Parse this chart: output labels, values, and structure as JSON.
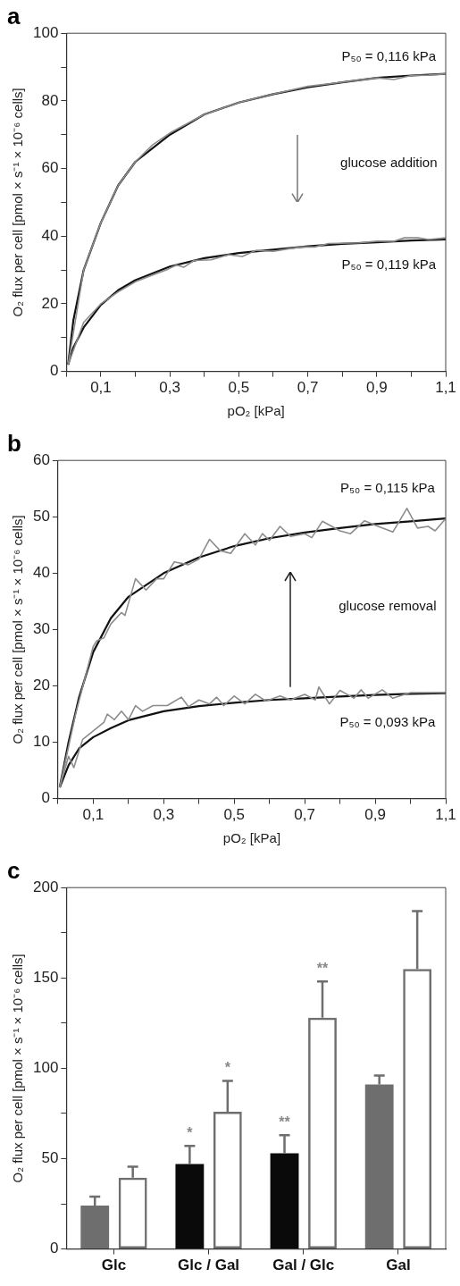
{
  "chart_data": [
    {
      "type": "line",
      "title": "a",
      "xlabel": "pO₂ [kPa]",
      "ylabel": "O₂ flux per cell [pmol × s⁻¹ × 10⁻⁶ cells]",
      "xlim": [
        0,
        1.1
      ],
      "ylim": [
        0,
        100
      ],
      "xticks": [
        {
          "value": 0,
          "label": null
        },
        {
          "value": 0.1,
          "label": "0,1"
        },
        {
          "value": 0.2,
          "label": null
        },
        {
          "value": 0.3,
          "label": "0,3"
        },
        {
          "value": 0.4,
          "label": null
        },
        {
          "value": 0.5,
          "label": "0,5"
        },
        {
          "value": 0.6,
          "label": null
        },
        {
          "value": 0.7,
          "label": "0,7"
        },
        {
          "value": 0.8,
          "label": null
        },
        {
          "value": 0.9,
          "label": "0,9"
        },
        {
          "value": 1.0,
          "label": null
        },
        {
          "value": 1.1,
          "label": "1,1"
        }
      ],
      "yticks": [
        0,
        {
          "value": 10,
          "label": null
        },
        20,
        {
          "value": 30,
          "label": null
        },
        40,
        {
          "value": 50,
          "label": null
        },
        60,
        {
          "value": 70,
          "label": null
        },
        80,
        {
          "value": 90,
          "label": null
        },
        100
      ],
      "grid": false,
      "legend": false,
      "marker": "none",
      "line_style": "solid",
      "series": [
        {
          "color": "#8c8c8c",
          "x": [
            0.005,
            0.05,
            0.1,
            0.15,
            0.2,
            0.25,
            0.3,
            0.4,
            0.5,
            0.6,
            0.7,
            0.8,
            0.9,
            0.95,
            1.0,
            1.05,
            1.1
          ],
          "values": [
            2,
            30,
            44,
            55,
            62,
            67,
            70.5,
            76,
            79.5,
            82,
            84.3,
            85.5,
            86.8,
            86.3,
            87.5,
            87.6,
            88
          ]
        },
        {
          "color": "#8c8c8c",
          "x": [
            0.005,
            0.05,
            0.1,
            0.15,
            0.2,
            0.25,
            0.29,
            0.32,
            0.34,
            0.37,
            0.42,
            0.47,
            0.51,
            0.55,
            0.6,
            0.64,
            0.68,
            0.72,
            0.76,
            0.85,
            0.9,
            0.95,
            0.98,
            1.02,
            1.05,
            1.1
          ],
          "values": [
            2,
            14.5,
            20,
            23.5,
            26.5,
            28.5,
            30,
            31.5,
            30.8,
            32.8,
            33,
            34.5,
            34,
            35.8,
            35.5,
            36.2,
            36.8,
            36.8,
            37.8,
            38,
            38.5,
            38.5,
            39.5,
            39.5,
            39,
            39.5
          ]
        },
        {
          "color": "#111111",
          "x": [
            0.005,
            0.02,
            0.05,
            0.1,
            0.15,
            0.2,
            0.3,
            0.4,
            0.5,
            0.6,
            0.7,
            0.8,
            0.9,
            1.0,
            1.1
          ],
          "values": [
            2,
            15,
            30,
            44,
            55,
            62,
            70,
            76,
            79.5,
            82,
            84,
            85.5,
            86.8,
            87.5,
            88
          ]
        },
        {
          "color": "#111111",
          "x": [
            0.005,
            0.02,
            0.05,
            0.1,
            0.15,
            0.2,
            0.3,
            0.4,
            0.5,
            0.6,
            0.7,
            0.8,
            0.9,
            1.0,
            1.1
          ],
          "values": [
            2,
            7,
            13,
            19.7,
            24,
            27,
            31,
            33.5,
            35,
            36,
            37,
            37.7,
            38.2,
            38.7,
            39
          ]
        }
      ],
      "annotations": [
        "P₅₀ = 0,116 kPa",
        "glucose addition",
        "P₅₀ = 0,119 kPa"
      ]
    },
    {
      "type": "line",
      "title": "b",
      "xlabel": "pO₂ [kPa]",
      "ylabel": "O₂ flux per cell [pmol × s⁻¹ × 10⁻⁶ cells]",
      "xlim": [
        0,
        1.1
      ],
      "ylim": [
        0,
        60
      ],
      "xticks": [
        {
          "value": 0,
          "label": null
        },
        {
          "value": 0.1,
          "label": "0,1"
        },
        {
          "value": 0.2,
          "label": null
        },
        {
          "value": 0.3,
          "label": "0,3"
        },
        {
          "value": 0.4,
          "label": null
        },
        {
          "value": 0.5,
          "label": "0,5"
        },
        {
          "value": 0.6,
          "label": null
        },
        {
          "value": 0.7,
          "label": "0,7"
        },
        {
          "value": 0.8,
          "label": null
        },
        {
          "value": 0.9,
          "label": "0,9"
        },
        {
          "value": 1.0,
          "label": null
        },
        {
          "value": 1.1,
          "label": "1,1"
        }
      ],
      "yticks": [
        0,
        10,
        20,
        30,
        40,
        50,
        60
      ],
      "grid": false,
      "legend": false,
      "marker": "none",
      "line_style": "solid",
      "series": [
        {
          "color": "#8c8c8c",
          "x": [
            0.005,
            0.05,
            0.1,
            0.11,
            0.13,
            0.15,
            0.18,
            0.19,
            0.22,
            0.25,
            0.28,
            0.3,
            0.33,
            0.37,
            0.4,
            0.43,
            0.46,
            0.49,
            0.53,
            0.56,
            0.58,
            0.6,
            0.63,
            0.66,
            0.7,
            0.72,
            0.75,
            0.8,
            0.83,
            0.87,
            0.9,
            0.95,
            0.99,
            1.02,
            1.05,
            1.07,
            1.1
          ],
          "values": [
            2,
            15,
            27,
            28,
            28.5,
            31,
            33,
            32.5,
            39,
            37,
            39,
            39,
            42,
            41.5,
            42.5,
            46,
            44,
            43.5,
            47,
            45,
            47,
            45.8,
            48.3,
            46.5,
            47,
            46.3,
            49.2,
            47.5,
            47,
            49.3,
            48.5,
            47.3,
            51.5,
            48,
            48.3,
            47.5,
            49.7
          ]
        },
        {
          "color": "#8c8c8c",
          "x": [
            0.005,
            0.03,
            0.045,
            0.07,
            0.1,
            0.13,
            0.14,
            0.16,
            0.18,
            0.2,
            0.22,
            0.24,
            0.27,
            0.31,
            0.35,
            0.37,
            0.4,
            0.43,
            0.45,
            0.47,
            0.5,
            0.53,
            0.56,
            0.59,
            0.63,
            0.66,
            0.7,
            0.73,
            0.74,
            0.77,
            0.8,
            0.84,
            0.86,
            0.88,
            0.92,
            0.95,
            1.0,
            1.1
          ],
          "values": [
            2,
            7.5,
            5.5,
            10.5,
            12,
            13.5,
            15,
            14,
            15.5,
            14,
            16.5,
            15.5,
            16.5,
            16.5,
            18,
            16.3,
            17.5,
            16.8,
            18,
            16.5,
            18.2,
            16.8,
            18.5,
            17.3,
            18.2,
            17.5,
            18.5,
            17.5,
            19.8,
            16.8,
            19.2,
            17.8,
            19.3,
            17.8,
            19.3,
            17.8,
            18.8,
            18.8
          ]
        },
        {
          "color": "#111111",
          "x": [
            0.005,
            0.03,
            0.06,
            0.1,
            0.15,
            0.2,
            0.3,
            0.4,
            0.5,
            0.6,
            0.7,
            0.8,
            0.9,
            1.0,
            1.1
          ],
          "values": [
            2,
            10,
            18,
            26,
            32,
            35.8,
            40,
            42.8,
            44.8,
            46.2,
            47.2,
            48,
            48.7,
            49.2,
            49.7
          ]
        },
        {
          "color": "#111111",
          "x": [
            0.005,
            0.03,
            0.06,
            0.1,
            0.15,
            0.2,
            0.3,
            0.4,
            0.5,
            0.6,
            0.7,
            0.8,
            0.9,
            1.0,
            1.1
          ],
          "values": [
            2,
            5.9,
            8.9,
            10.9,
            12.5,
            13.9,
            15.5,
            16.4,
            17,
            17.5,
            17.8,
            18.1,
            18.4,
            18.6,
            18.7
          ]
        }
      ],
      "annotations": [
        "P₅₀ = 0,115 kPa",
        "glucose removal",
        "P₅₀ = 0,093 kPa"
      ]
    },
    {
      "type": "bar",
      "title": "c",
      "ylabel": "O₂ flux per cell [pmol × s⁻¹ × 10⁻⁶ cells]",
      "categories": [
        "Glc",
        "Glc / Gal",
        "Gal / Glc",
        "Gal"
      ],
      "ylim": [
        0,
        200
      ],
      "yticks": [
        0,
        {
          "value": 25,
          "label": null
        },
        50,
        {
          "value": 75,
          "label": null
        },
        100,
        {
          "value": 125,
          "label": null
        },
        150,
        {
          "value": 175,
          "label": null
        },
        200
      ],
      "grid": false,
      "legend": false,
      "series": [
        {
          "colors": [
            "#6e6e6e",
            "#0a0a0a",
            "#0a0a0a",
            "#6e6e6e"
          ],
          "values": [
            24,
            47,
            53,
            91
          ],
          "errors": [
            5,
            10,
            10,
            5
          ]
        },
        {
          "color": "#6e6e6e",
          "values": [
            39.5,
            76,
            128,
            155
          ],
          "errors": [
            6,
            17,
            20,
            32
          ]
        }
      ],
      "annotations": [
        "*",
        "*",
        "**",
        "**"
      ]
    }
  ]
}
